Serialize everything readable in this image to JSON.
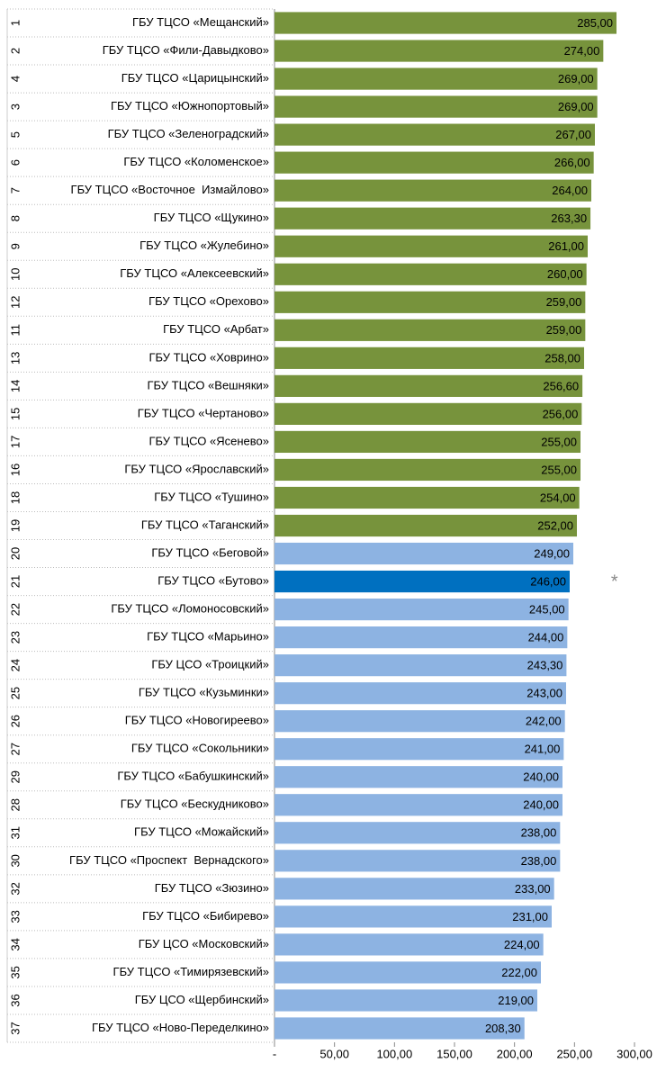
{
  "chart_data": {
    "type": "hbar",
    "ranks": [
      1,
      2,
      4,
      3,
      5,
      6,
      7,
      8,
      9,
      10,
      12,
      11,
      13,
      14,
      15,
      17,
      16,
      18,
      19,
      20,
      21,
      22,
      23,
      24,
      25,
      26,
      27,
      29,
      28,
      31,
      30,
      32,
      33,
      34,
      35,
      36,
      37
    ],
    "categories": [
      "ГБУ ТЦСО «Мещанский»",
      "ГБУ ТЦСО «Фили-Давыдково»",
      "ГБУ ТЦСО «Царицынский»",
      "ГБУ ТЦСО «Южнопортовый»",
      "ГБУ ТЦСО «Зеленоградский»",
      "ГБУ ТЦСО «Коломенское»",
      "ГБУ ТЦСО «Восточное  Измайлово»",
      "ГБУ ТЦСО «Щукино»",
      "ГБУ ТЦСО «Жулебино»",
      "ГБУ ТЦСО «Алексеевский»",
      "ГБУ ТЦСО «Орехово»",
      "ГБУ ТЦСО «Арбат»",
      "ГБУ ТЦСО «Ховрино»",
      "ГБУ ТЦСО «Вешняки»",
      "ГБУ ТЦСО «Чертаново»",
      "ГБУ ТЦСО «Ясенево»",
      "ГБУ ТЦСО «Ярославский»",
      "ГБУ ТЦСО «Тушино»",
      "ГБУ ТЦСО «Таганский»",
      "ГБУ ТЦСО «Беговой»",
      "ГБУ ТЦСО «Бутово»",
      "ГБУ ТЦСО «Ломоносовский»",
      "ГБУ ТЦСО «Марьино»",
      "ГБУ ЦСО «Троицкий»",
      "ГБУ ТЦСО «Кузьминки»",
      "ГБУ ТЦСО «Новогиреево»",
      "ГБУ ТЦСО «Сокольники»",
      "ГБУ ТЦСО «Бабушкинский»",
      "ГБУ ТЦСО «Бескудниково»",
      "ГБУ ТЦСО «Можайский»",
      "ГБУ ТЦСО «Проспект  Вернадского»",
      "ГБУ ТЦСО «Зюзино»",
      "ГБУ ТЦСО «Бибирево»",
      "ГБУ ЦСО «Московский»",
      "ГБУ ТЦСО «Тимирязевский»",
      "ГБУ ЦСО «Щербинский»",
      "ГБУ ТЦСО «Ново-Переделкино»"
    ],
    "values": [
      285,
      274,
      269,
      269,
      267,
      266,
      264,
      263.3,
      261,
      260,
      259,
      259,
      258,
      256.6,
      256,
      255,
      255,
      254,
      252,
      249,
      246,
      245,
      244,
      243.3,
      243,
      242,
      241,
      240,
      240,
      238,
      238,
      233,
      231,
      224,
      222,
      219,
      208.3
    ],
    "value_labels": [
      "285,00",
      "274,00",
      "269,00",
      "269,00",
      "267,00",
      "266,00",
      "264,00",
      "263,30",
      "261,00",
      "260,00",
      "259,00",
      "259,00",
      "258,00",
      "256,60",
      "256,00",
      "255,00",
      "255,00",
      "254,00",
      "252,00",
      "249,00",
      "246,00",
      "245,00",
      "244,00",
      "243,30",
      "243,00",
      "242,00",
      "241,00",
      "240,00",
      "240,00",
      "238,00",
      "238,00",
      "233,00",
      "231,00",
      "224,00",
      "222,00",
      "219,00",
      "208,30"
    ],
    "colors": [
      "#77933c",
      "#77933c",
      "#77933c",
      "#77933c",
      "#77933c",
      "#77933c",
      "#77933c",
      "#77933c",
      "#77933c",
      "#77933c",
      "#77933c",
      "#77933c",
      "#77933c",
      "#77933c",
      "#77933c",
      "#77933c",
      "#77933c",
      "#77933c",
      "#77933c",
      "#8db3e2",
      "#0070c0",
      "#8db3e2",
      "#8db3e2",
      "#8db3e2",
      "#8db3e2",
      "#8db3e2",
      "#8db3e2",
      "#8db3e2",
      "#8db3e2",
      "#8db3e2",
      "#8db3e2",
      "#8db3e2",
      "#8db3e2",
      "#8db3e2",
      "#8db3e2",
      "#8db3e2",
      "#8db3e2"
    ],
    "xlim": [
      0,
      300
    ],
    "xticks": [
      {
        "value": 0,
        "label": "-"
      },
      {
        "value": 50,
        "label": "50,00"
      },
      {
        "value": 100,
        "label": "100,00"
      },
      {
        "value": 150,
        "label": "150,00"
      },
      {
        "value": 200,
        "label": "200,00"
      },
      {
        "value": 250,
        "label": "250,00"
      },
      {
        "value": 300,
        "label": "300,00"
      }
    ],
    "annotation": "*"
  }
}
